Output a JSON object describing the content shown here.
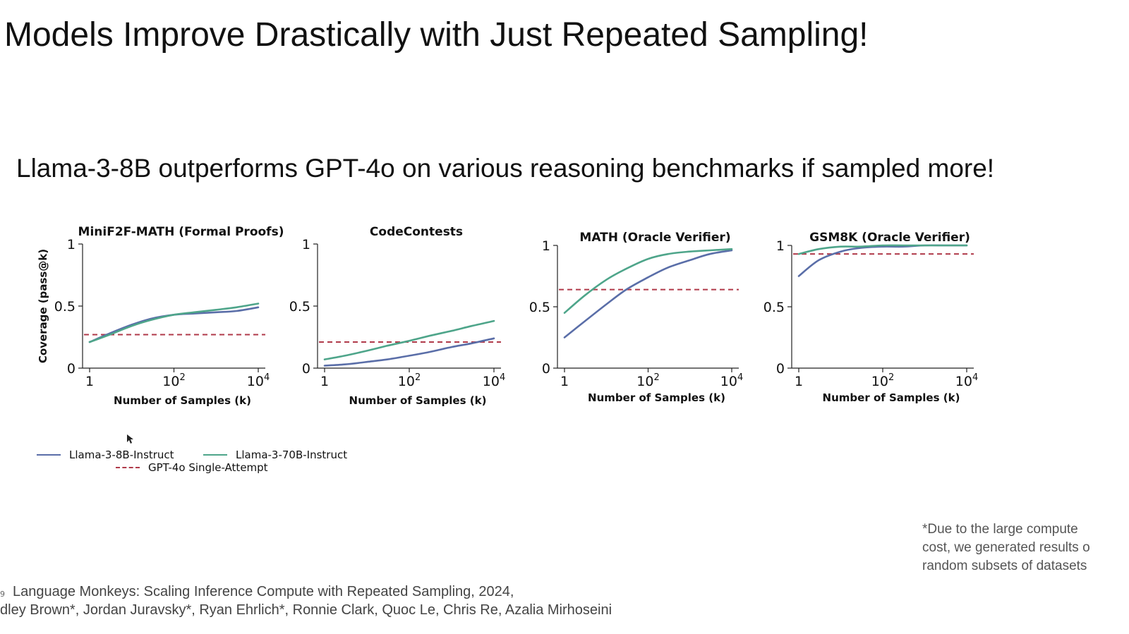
{
  "slide": {
    "title": "Models Improve Drastically with Just Repeated Sampling!",
    "subtitle": "Llama-3-8B outperforms GPT-4o on various reasoning benchmarks if sampled more!",
    "footnote": [
      "*Due to the large compute",
      "cost, we generated results o",
      "random subsets of datasets"
    ],
    "citation": [
      "Language Monkeys: Scaling Inference Compute with Repeated Sampling, 2024,",
      "dley Brown*, Jordan Juravsky*, Ryan Ehrlich*, Ronnie Clark, Quoc Le, Chris Re, Azalia Mirhoseini"
    ],
    "slide_number": "9"
  },
  "legend": {
    "items": [
      {
        "label": "Llama-3-8B-Instruct",
        "color": "#5a6ea8",
        "style": "solid"
      },
      {
        "label": "Llama-3-70B-Instruct",
        "color": "#4ea58a",
        "style": "solid"
      },
      {
        "label": "GPT-4o Single-Attempt",
        "color": "#b03a4a",
        "style": "dashed"
      }
    ]
  },
  "chart_data": [
    {
      "type": "line",
      "title": "MiniF2F-MATH (Formal Proofs)",
      "xlabel": "Number of Samples (k)",
      "ylabel": "Coverage (pass@k)",
      "xscale": "log",
      "xlim": [
        1,
        10000
      ],
      "ylim": [
        0,
        1
      ],
      "xticks": [
        {
          "value": 1,
          "base": "1",
          "exp": ""
        },
        {
          "value": 100,
          "base": "10",
          "exp": "2"
        },
        {
          "value": 10000,
          "base": "10",
          "exp": "4"
        }
      ],
      "yticks": [
        {
          "value": 0,
          "label": "0"
        },
        {
          "value": 0.5,
          "label": "0.5"
        },
        {
          "value": 1,
          "label": "1"
        }
      ],
      "series": [
        {
          "name": "Llama-3-8B-Instruct",
          "x": [
            1,
            3,
            10,
            30,
            100,
            300,
            1000,
            3000,
            10000
          ],
          "y": [
            0.21,
            0.28,
            0.35,
            0.4,
            0.43,
            0.44,
            0.45,
            0.46,
            0.49
          ]
        },
        {
          "name": "Llama-3-70B-Instruct",
          "x": [
            1,
            3,
            10,
            30,
            100,
            300,
            1000,
            3000,
            10000
          ],
          "y": [
            0.21,
            0.27,
            0.34,
            0.39,
            0.43,
            0.45,
            0.47,
            0.49,
            0.52
          ]
        }
      ],
      "baseline": {
        "name": "GPT-4o Single-Attempt",
        "y": 0.27
      }
    },
    {
      "type": "line",
      "title": "CodeContests",
      "xlabel": "Number of Samples (k)",
      "ylabel": "",
      "xscale": "log",
      "xlim": [
        1,
        10000
      ],
      "ylim": [
        0,
        1
      ],
      "xticks": [
        {
          "value": 1,
          "base": "1",
          "exp": ""
        },
        {
          "value": 100,
          "base": "10",
          "exp": "2"
        },
        {
          "value": 10000,
          "base": "10",
          "exp": "4"
        }
      ],
      "yticks": [
        {
          "value": 0,
          "label": "0"
        },
        {
          "value": 0.5,
          "label": "0.5"
        },
        {
          "value": 1,
          "label": "1"
        }
      ],
      "series": [
        {
          "name": "Llama-3-8B-Instruct",
          "x": [
            1,
            3,
            10,
            30,
            100,
            300,
            1000,
            3000,
            10000
          ],
          "y": [
            0.02,
            0.03,
            0.05,
            0.07,
            0.1,
            0.13,
            0.17,
            0.2,
            0.24
          ]
        },
        {
          "name": "Llama-3-70B-Instruct",
          "x": [
            1,
            3,
            10,
            30,
            100,
            300,
            1000,
            3000,
            10000
          ],
          "y": [
            0.07,
            0.1,
            0.14,
            0.18,
            0.22,
            0.26,
            0.3,
            0.34,
            0.38
          ]
        }
      ],
      "baseline": {
        "name": "GPT-4o Single-Attempt",
        "y": 0.21
      }
    },
    {
      "type": "line",
      "title": "MATH (Oracle Verifier)",
      "xlabel": "Number of Samples (k)",
      "ylabel": "",
      "xscale": "log",
      "xlim": [
        1,
        10000
      ],
      "ylim": [
        0,
        1
      ],
      "xticks": [
        {
          "value": 1,
          "base": "1",
          "exp": ""
        },
        {
          "value": 100,
          "base": "10",
          "exp": "2"
        },
        {
          "value": 10000,
          "base": "10",
          "exp": "4"
        }
      ],
      "yticks": [
        {
          "value": 0,
          "label": "0"
        },
        {
          "value": 0.5,
          "label": "0.5"
        },
        {
          "value": 1,
          "label": "1"
        }
      ],
      "series": [
        {
          "name": "Llama-3-8B-Instruct",
          "x": [
            1,
            3,
            10,
            30,
            100,
            300,
            1000,
            3000,
            10000
          ],
          "y": [
            0.25,
            0.38,
            0.52,
            0.64,
            0.74,
            0.82,
            0.88,
            0.93,
            0.96
          ]
        },
        {
          "name": "Llama-3-70B-Instruct",
          "x": [
            1,
            3,
            10,
            30,
            100,
            300,
            1000,
            3000,
            10000
          ],
          "y": [
            0.45,
            0.59,
            0.72,
            0.81,
            0.89,
            0.93,
            0.95,
            0.96,
            0.97
          ]
        }
      ],
      "baseline": {
        "name": "GPT-4o Single-Attempt",
        "y": 0.64
      }
    },
    {
      "type": "line",
      "title": "GSM8K (Oracle Verifier)",
      "xlabel": "Number of Samples (k)",
      "ylabel": "",
      "xscale": "log",
      "xlim": [
        1,
        10000
      ],
      "ylim": [
        0,
        1
      ],
      "xticks": [
        {
          "value": 1,
          "base": "1",
          "exp": ""
        },
        {
          "value": 100,
          "base": "10",
          "exp": "2"
        },
        {
          "value": 10000,
          "base": "10",
          "exp": "4"
        }
      ],
      "yticks": [
        {
          "value": 0,
          "label": "0"
        },
        {
          "value": 0.5,
          "label": "0.5"
        },
        {
          "value": 1,
          "label": "1"
        }
      ],
      "series": [
        {
          "name": "Llama-3-8B-Instruct",
          "x": [
            1,
            3,
            10,
            30,
            100,
            300,
            1000,
            3000,
            10000
          ],
          "y": [
            0.75,
            0.88,
            0.95,
            0.98,
            0.99,
            0.99,
            1.0,
            1.0,
            1.0
          ]
        },
        {
          "name": "Llama-3-70B-Instruct",
          "x": [
            1,
            3,
            10,
            30,
            100,
            300,
            1000,
            3000,
            10000
          ],
          "y": [
            0.93,
            0.97,
            0.99,
            0.99,
            1.0,
            1.0,
            1.0,
            1.0,
            1.0
          ]
        }
      ],
      "baseline": {
        "name": "GPT-4o Single-Attempt",
        "y": 0.93
      }
    }
  ]
}
